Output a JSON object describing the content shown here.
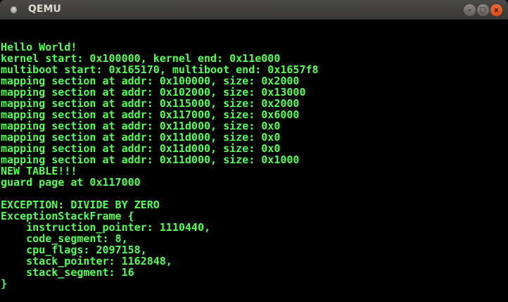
{
  "window": {
    "title": "QEMU",
    "buttons": {
      "minimize": "–",
      "maximize": "□",
      "close": "x"
    },
    "colors": {
      "text": "#55ff55",
      "background": "#000000",
      "close": "#e4531f"
    }
  },
  "console": {
    "lines": [
      "",
      "Hello World!",
      "kernel start: 0x100000, kernel end: 0x11e000",
      "multiboot start: 0x165170, multiboot end: 0x1657f8",
      "mapping section at addr: 0x100000, size: 0x2000",
      "mapping section at addr: 0x102000, size: 0x13000",
      "mapping section at addr: 0x115000, size: 0x2000",
      "mapping section at addr: 0x117000, size: 0x6000",
      "mapping section at addr: 0x11d000, size: 0x0",
      "mapping section at addr: 0x11d000, size: 0x0",
      "mapping section at addr: 0x11d000, size: 0x0",
      "mapping section at addr: 0x11d000, size: 0x1000",
      "NEW TABLE!!!",
      "guard page at 0x117000",
      "",
      "EXCEPTION: DIVIDE BY ZERO",
      "ExceptionStackFrame {",
      "    instruction_pointer: 1110440,",
      "    code_segment: 8,",
      "    cpu_flags: 2097158,",
      "    stack_pointer: 1162848,",
      "    stack_segment: 16",
      "}"
    ]
  }
}
